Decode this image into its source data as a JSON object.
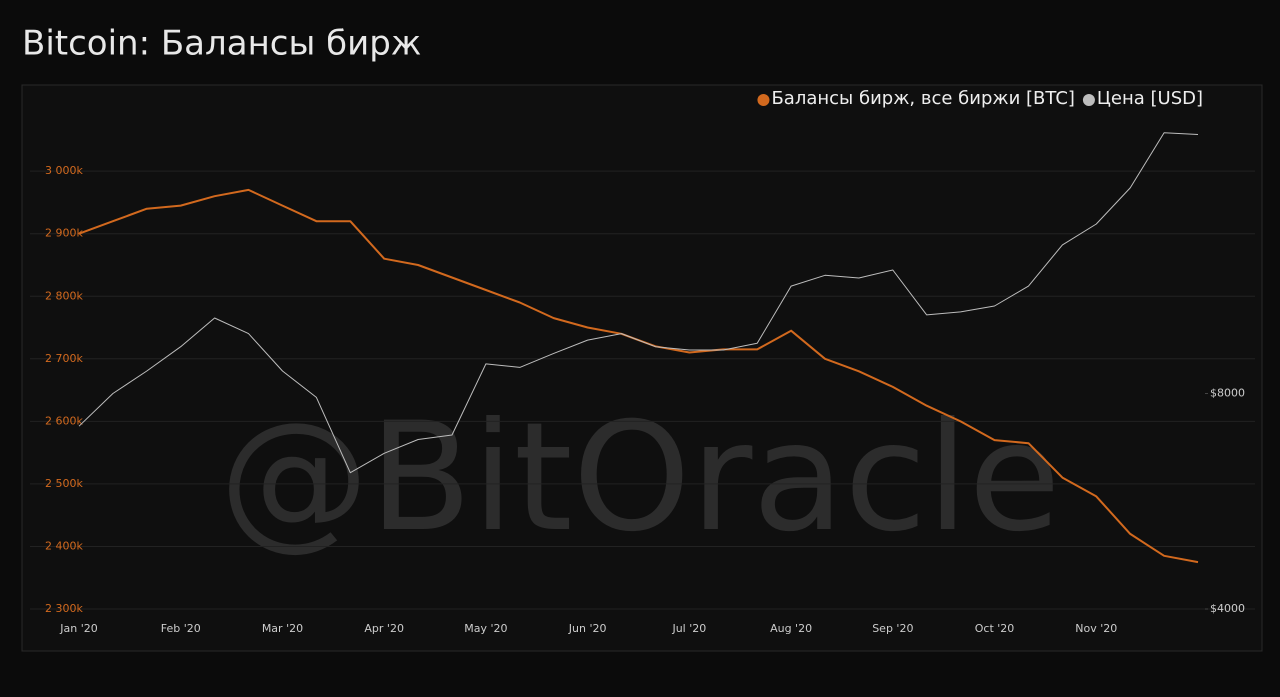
{
  "chart_data": {
    "type": "line",
    "title": "Bitcoin: Балансы бирж",
    "watermark": "@BitOracle",
    "categories": [
      "Jan '20",
      null,
      null,
      "Feb '20",
      null,
      null,
      "Mar '20",
      null,
      null,
      "Apr '20",
      null,
      null,
      "May '20",
      null,
      null,
      "Jun '20",
      null,
      null,
      "Jul '20",
      null,
      null,
      "Aug '20",
      null,
      null,
      "Sep '20",
      null,
      null,
      "Oct '20",
      null,
      null,
      "Nov '20",
      null,
      null,
      null
    ],
    "series": [
      {
        "name": "Балансы бирж, все биржи [BTC]",
        "color": "#d2691e",
        "axis": "y",
        "values": [
          2900000,
          2920000,
          2940000,
          2945000,
          2960000,
          2970000,
          2945000,
          2920000,
          2920000,
          2860000,
          2850000,
          2830000,
          2810000,
          2790000,
          2765000,
          2750000,
          2740000,
          2720000,
          2710000,
          2715000,
          2715000,
          2745000,
          2700000,
          2680000,
          2655000,
          2625000,
          2600000,
          2570000,
          2565000,
          2510000,
          2480000,
          2420000,
          2385000,
          2375000
        ]
      },
      {
        "name": "Цена [USD]",
        "color": "#bdbdbd",
        "axis": "y2",
        "values": [
          7200,
          8000,
          8600,
          9300,
          10200,
          9700,
          8600,
          7900,
          6200,
          6600,
          6900,
          7000,
          8800,
          8700,
          9100,
          9500,
          9700,
          9300,
          9200,
          9200,
          9400,
          11300,
          11700,
          11600,
          11900,
          10300,
          10400,
          10600,
          11300,
          12900,
          13800,
          15500,
          18500,
          18400
        ]
      }
    ],
    "ylim": [
      2300000,
      3100000
    ],
    "yticks": [
      {
        "value": 2300000,
        "label": "2 300k"
      },
      {
        "value": 2400000,
        "label": "2 400k"
      },
      {
        "value": 2500000,
        "label": "2 500k"
      },
      {
        "value": 2600000,
        "label": "2 600k"
      },
      {
        "value": 2700000,
        "label": "2 700k"
      },
      {
        "value": 2800000,
        "label": "2 800k"
      },
      {
        "value": 2900000,
        "label": "2 900k"
      },
      {
        "value": 3000000,
        "label": "3 000k"
      }
    ],
    "y2lim": [
      4000,
      20000
    ],
    "y2ticks": [
      {
        "value": 4000,
        "label": "$4000"
      },
      {
        "value": 8000,
        "label": "$8000"
      }
    ],
    "y2scale": "log",
    "grid": true,
    "legend": "top-right"
  }
}
